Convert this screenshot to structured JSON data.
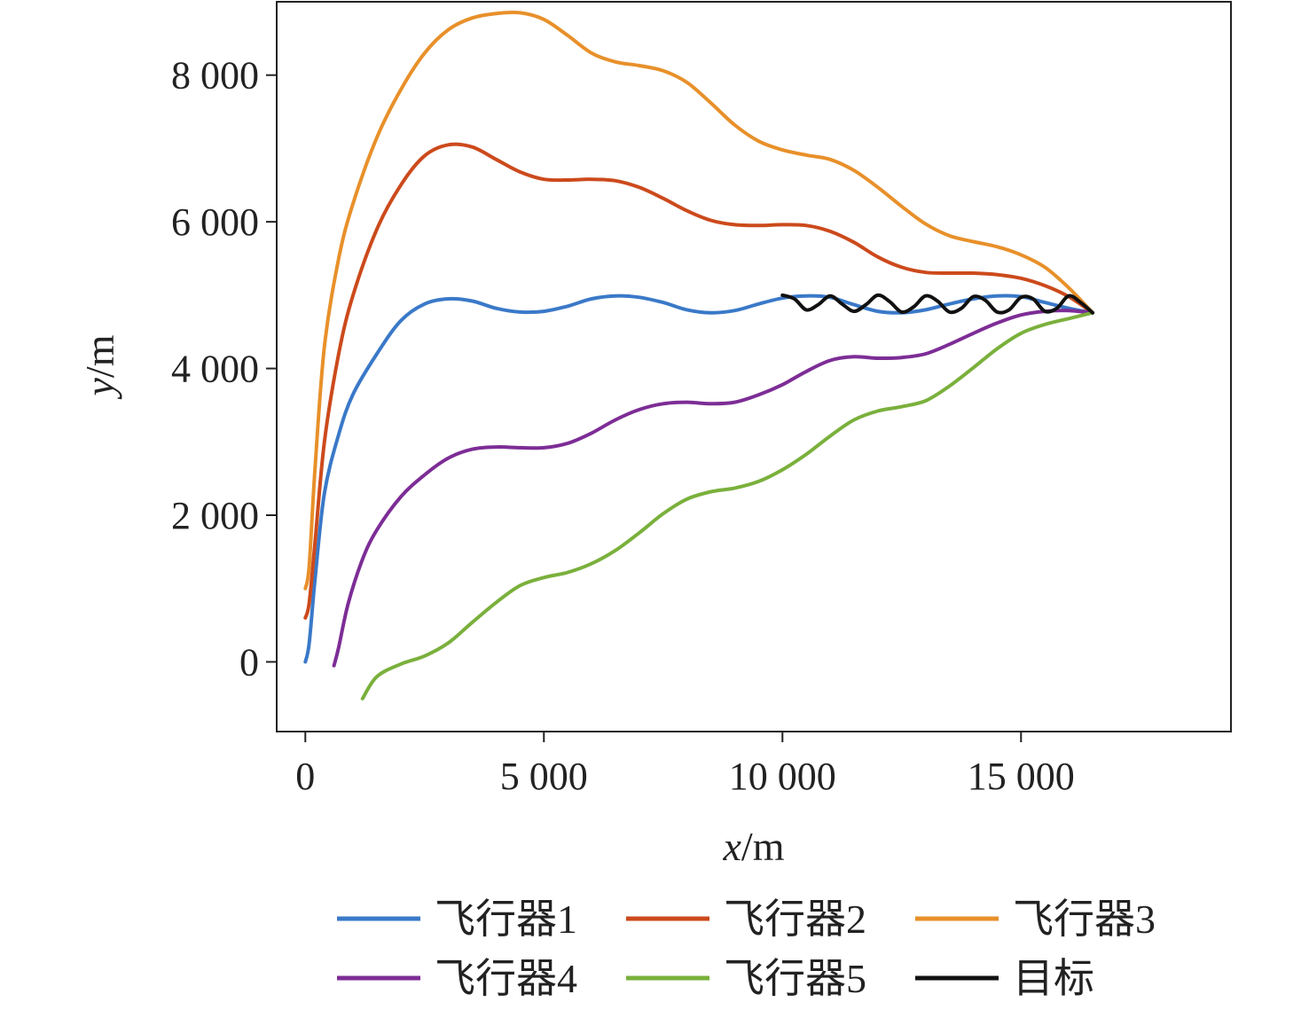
{
  "chart_data": {
    "type": "line",
    "xlabel_var": "x",
    "xlabel_unit": "/m",
    "ylabel_var": "y",
    "ylabel_unit": "/m",
    "xlim": [
      -600,
      19400
    ],
    "ylim": [
      -950,
      9000
    ],
    "x_ticks": [
      0,
      5000,
      10000,
      15000
    ],
    "x_tick_labels": [
      "0",
      "5 000",
      "10 000",
      "15 000"
    ],
    "y_ticks": [
      0,
      2000,
      4000,
      6000,
      8000
    ],
    "y_tick_labels": [
      "0",
      "2 000",
      "4 000",
      "6 000",
      "8 000"
    ],
    "grid": false,
    "legend_position": "bottom",
    "series": [
      {
        "name": "飞行器1",
        "color": "#3a79c8",
        "x": [
          0,
          80,
          200,
          400,
          700,
          1000,
          1500,
          2000,
          2500,
          3000,
          3500,
          4000,
          4500,
          5000,
          5500,
          6000,
          6500,
          7000,
          7500,
          8000,
          8500,
          9000,
          9500,
          10000,
          10500,
          11000,
          11500,
          12000,
          12500,
          13000,
          13500,
          14000,
          14500,
          15000,
          15500,
          16000,
          16500
        ],
        "y": [
          0,
          250,
          1100,
          2300,
          3100,
          3650,
          4200,
          4650,
          4880,
          4950,
          4920,
          4820,
          4770,
          4780,
          4850,
          4950,
          4990,
          4970,
          4900,
          4800,
          4760,
          4790,
          4880,
          4960,
          4990,
          4970,
          4870,
          4780,
          4760,
          4800,
          4880,
          4950,
          4990,
          4980,
          4900,
          4820,
          4760
        ]
      },
      {
        "name": "飞行器2",
        "color": "#cc4a1c",
        "x": [
          0,
          80,
          200,
          400,
          700,
          1000,
          1500,
          2000,
          2500,
          3000,
          3500,
          4000,
          4500,
          5000,
          5500,
          6000,
          6500,
          7000,
          7500,
          8000,
          8500,
          9000,
          9500,
          10000,
          10500,
          11000,
          11500,
          12000,
          12500,
          13000,
          13500,
          14000,
          14500,
          15000,
          15500,
          16000,
          16500
        ],
        "y": [
          600,
          800,
          1600,
          3000,
          4200,
          5000,
          5900,
          6500,
          6900,
          7050,
          7020,
          6850,
          6680,
          6580,
          6570,
          6580,
          6560,
          6470,
          6320,
          6150,
          6020,
          5960,
          5950,
          5960,
          5950,
          5870,
          5720,
          5520,
          5380,
          5310,
          5300,
          5300,
          5280,
          5230,
          5130,
          4980,
          4760
        ]
      },
      {
        "name": "飞行器3",
        "color": "#e8902a",
        "x": [
          0,
          80,
          200,
          400,
          700,
          1000,
          1500,
          2000,
          2500,
          3000,
          3500,
          4000,
          4500,
          5000,
          5500,
          6000,
          6500,
          7000,
          7500,
          8000,
          8500,
          9000,
          9500,
          10000,
          10500,
          11000,
          11500,
          12000,
          12500,
          13000,
          13500,
          14000,
          14500,
          15000,
          15500,
          16000,
          16500
        ],
        "y": [
          1000,
          1300,
          2600,
          4300,
          5500,
          6250,
          7150,
          7800,
          8300,
          8620,
          8780,
          8840,
          8850,
          8760,
          8540,
          8300,
          8180,
          8130,
          8060,
          7900,
          7620,
          7320,
          7100,
          6980,
          6910,
          6850,
          6700,
          6470,
          6210,
          5970,
          5810,
          5730,
          5660,
          5550,
          5380,
          5100,
          4760
        ]
      },
      {
        "name": "飞行器4",
        "color": "#7d2d96",
        "x": [
          600,
          700,
          900,
          1200,
          1500,
          2000,
          2500,
          3000,
          3500,
          4000,
          4500,
          5000,
          5500,
          6000,
          6500,
          7000,
          7500,
          8000,
          8500,
          9000,
          9500,
          10000,
          10500,
          11000,
          11500,
          12000,
          12500,
          13000,
          13500,
          14000,
          14500,
          15000,
          15500,
          16000,
          16500
        ],
        "y": [
          -50,
          200,
          800,
          1400,
          1800,
          2250,
          2550,
          2780,
          2900,
          2930,
          2920,
          2920,
          2980,
          3120,
          3300,
          3440,
          3520,
          3540,
          3520,
          3540,
          3640,
          3780,
          3960,
          4110,
          4160,
          4140,
          4150,
          4200,
          4330,
          4480,
          4620,
          4730,
          4780,
          4790,
          4760
        ]
      },
      {
        "name": "飞行器5",
        "color": "#7ab03c",
        "x": [
          1200,
          1500,
          2000,
          2500,
          3000,
          3500,
          4000,
          4500,
          5000,
          5500,
          6000,
          6500,
          7000,
          7500,
          8000,
          8500,
          9000,
          9500,
          10000,
          10500,
          11000,
          11500,
          12000,
          12500,
          13000,
          13500,
          14000,
          14500,
          15000,
          15500,
          16000,
          16500
        ],
        "y": [
          -500,
          -200,
          -30,
          80,
          260,
          540,
          810,
          1040,
          1150,
          1220,
          1340,
          1520,
          1760,
          2020,
          2220,
          2320,
          2370,
          2460,
          2620,
          2830,
          3080,
          3300,
          3420,
          3480,
          3560,
          3760,
          4010,
          4270,
          4480,
          4600,
          4680,
          4760
        ]
      },
      {
        "name": "目标",
        "color": "#111111",
        "x": [
          10000,
          10250,
          10500,
          10750,
          11000,
          11250,
          11500,
          11750,
          12000,
          12250,
          12500,
          12750,
          13000,
          13250,
          13500,
          13750,
          14000,
          14250,
          14500,
          14750,
          15000,
          15250,
          15500,
          15750,
          16000,
          16250,
          16500
        ],
        "y": [
          5000,
          4950,
          4800,
          4870,
          4990,
          4880,
          4780,
          4870,
          5000,
          4910,
          4770,
          4840,
          4990,
          4920,
          4770,
          4820,
          4980,
          4930,
          4770,
          4800,
          4970,
          4950,
          4780,
          4820,
          4990,
          4900,
          4760
        ]
      }
    ]
  }
}
